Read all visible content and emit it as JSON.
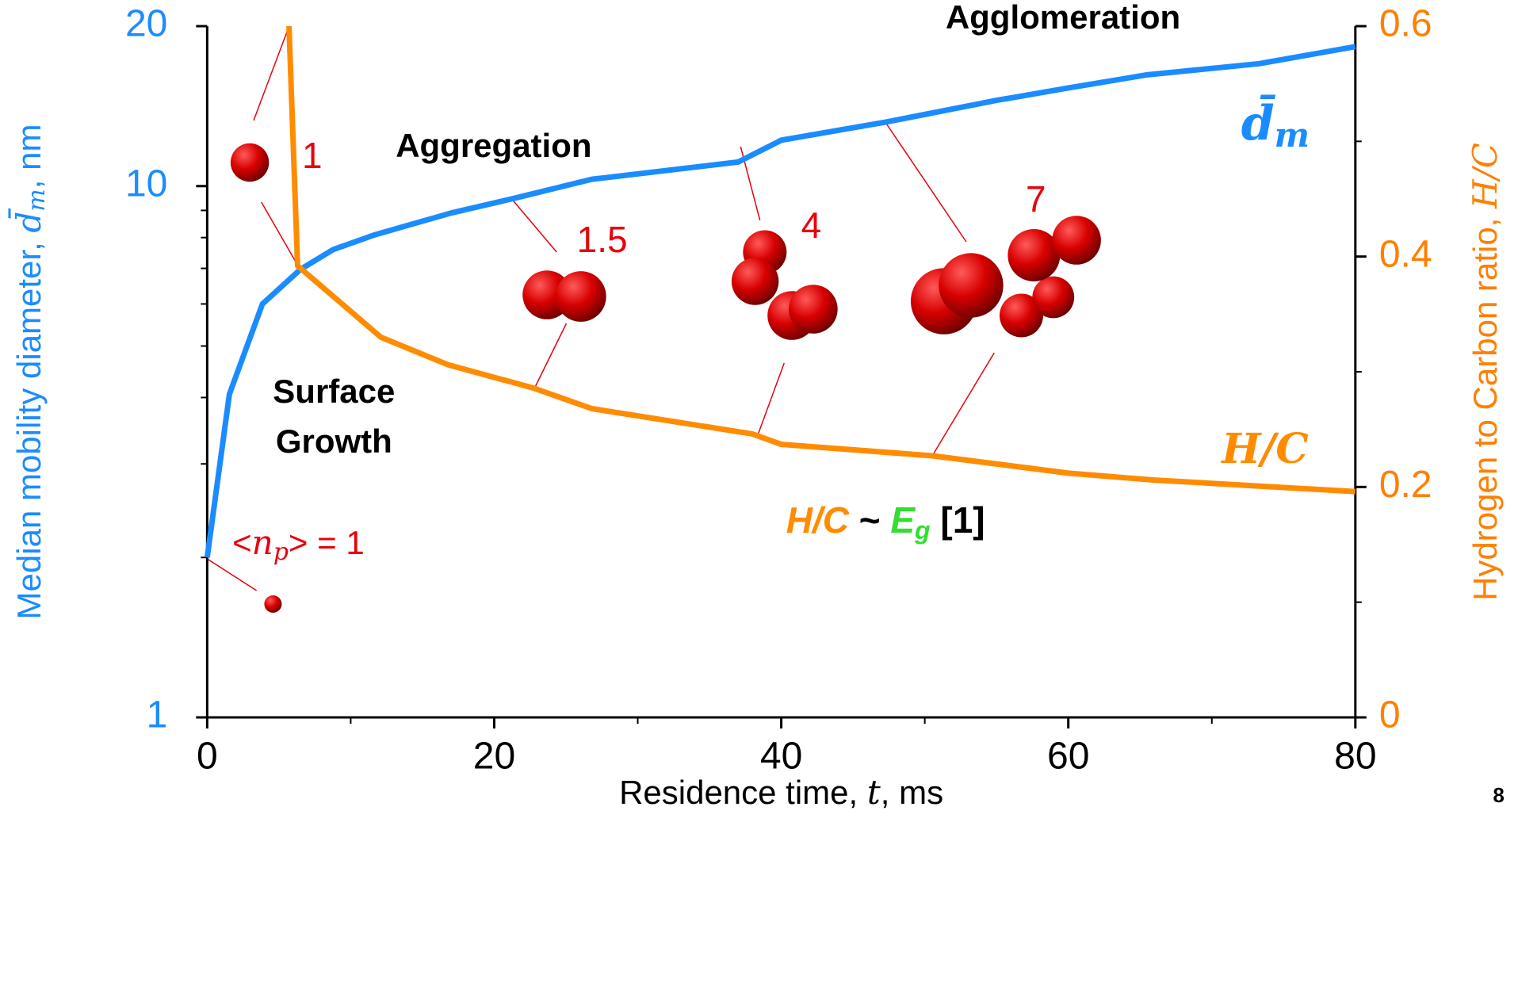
{
  "chart_data": {
    "type": "line",
    "x_label": [
      "Residence time, ",
      "t",
      ", ms"
    ],
    "y_label": [
      "Median mobility diameter, ",
      "d̄",
      "m",
      ", nm"
    ],
    "y2_label": [
      "Hydrogen to Carbon ratio, ",
      "H/C"
    ],
    "xlim": [
      0,
      80
    ],
    "xticks": [
      0,
      20,
      40,
      60,
      80
    ],
    "x_minor_ticks": [
      10,
      30,
      50,
      70
    ],
    "ylim": [
      1,
      20
    ],
    "y_log": true,
    "yticks": [
      1,
      10,
      20
    ],
    "y_minor_ticks": [
      2,
      3,
      4,
      5,
      6,
      7,
      8,
      9
    ],
    "y2lim": [
      0,
      0.6
    ],
    "y2ticks": [
      0,
      0.2,
      0.4,
      0.6
    ],
    "y2_minor_ticks": [
      0.1,
      0.3,
      0.5
    ],
    "series": [
      {
        "name": [
          "d̄",
          "m"
        ],
        "color": "#1a8cff",
        "x": [
          0,
          1.55,
          3.85,
          6.5,
          8.8,
          11.7,
          17,
          21.5,
          26.8,
          37,
          40,
          47.3,
          55,
          60,
          65.5,
          73.3,
          80
        ],
        "values": [
          2.0,
          4.06,
          6.0,
          6.97,
          7.6,
          8.1,
          8.9,
          9.5,
          10.3,
          11.1,
          12.2,
          13.2,
          14.5,
          15.3,
          16.2,
          17.0,
          18.3
        ]
      },
      {
        "name": [
          "H/C"
        ],
        "color": "#ff8c00",
        "axis": "y2",
        "x": [
          5.7,
          6.3,
          12.1,
          16.8,
          22.7,
          26.8,
          38,
          40,
          50.6,
          60,
          66,
          80
        ],
        "values": [
          0.6,
          0.392,
          0.33,
          0.306,
          0.286,
          0.268,
          0.246,
          0.237,
          0.227,
          0.212,
          0.206,
          0.196
        ]
      }
    ],
    "annotations": [
      [
        "Agglomeration"
      ],
      [
        "Aggregation"
      ],
      [
        "Surface"
      ],
      [
        "Growth"
      ],
      [
        "<",
        "n",
        "p",
        "> = 1"
      ],
      [
        "1"
      ],
      [
        "1.5"
      ],
      [
        "4"
      ],
      [
        "7"
      ],
      [
        "H/C",
        " ~ ",
        "E",
        "g",
        " [1]"
      ],
      [
        "8"
      ]
    ]
  }
}
